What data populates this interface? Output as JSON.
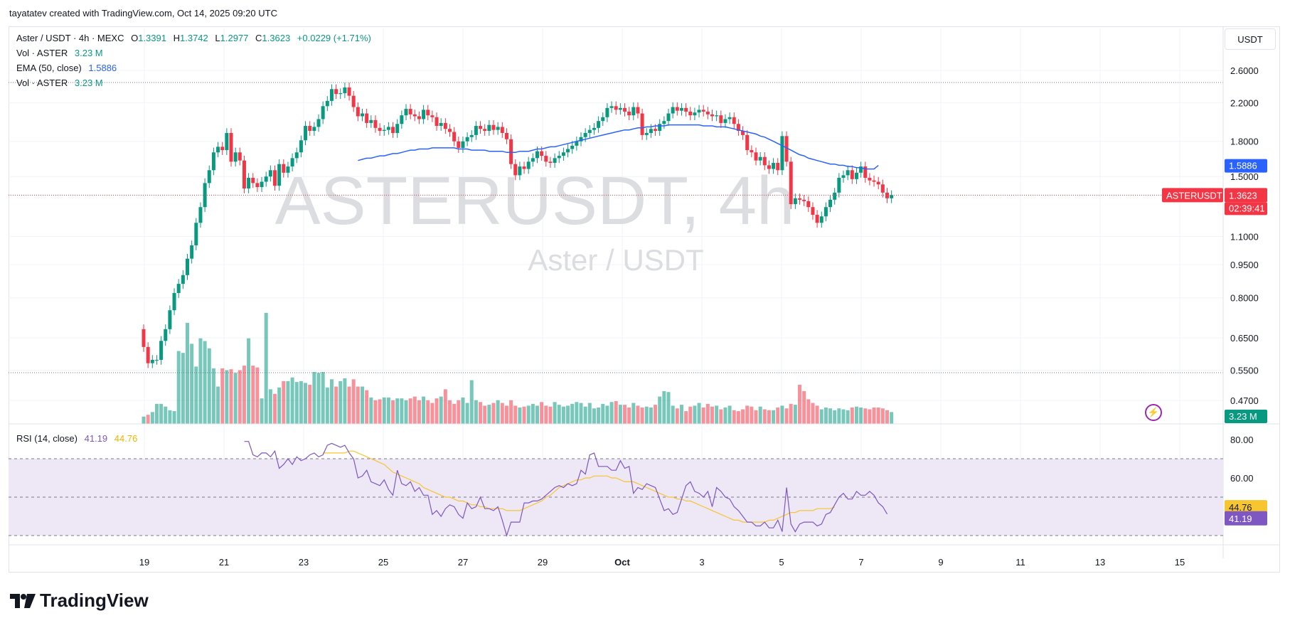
{
  "credit": "tayatatev created with TradingView.com, Oct 14, 2025 09:20 UTC",
  "logo_text": "TradingView",
  "currency": "USDT",
  "legend": {
    "symbol": "Aster / USDT · 4h · MEXC",
    "o_label": "O",
    "o": "1.3391",
    "h_label": "H",
    "h": "1.3742",
    "l_label": "L",
    "l": "1.2977",
    "c_label": "C",
    "c": "1.3623",
    "change": "+0.0229 (+1.71%)",
    "vol1_label": "Vol · ASTER",
    "vol1": "3.23 M",
    "ema_label": "EMA (50, close)",
    "ema": "1.5886",
    "vol2_label": "Vol · ASTER",
    "vol2": "3.23 M",
    "rsi_label": "RSI (14, close)",
    "rsi": "41.19",
    "rsi_ma": "44.76"
  },
  "colors": {
    "up": "#089981",
    "down": "#f23645",
    "ema": "#2962ff",
    "rsi": "#7e57c2",
    "rsi_ma": "#f7c530",
    "rsi_band": "#ede7f6"
  },
  "chart_data": {
    "type": "candlestick",
    "watermark": "ASTERUSDT, 4h",
    "watermark_sub": "Aster / USDT",
    "price_ticks": [
      2.6,
      2.2,
      1.8,
      1.5,
      1.1,
      0.95,
      0.8,
      0.65,
      0.55,
      0.47
    ],
    "price_tick_labels": [
      "2.6000",
      "2.2000",
      "1.8000",
      "1.5000",
      "1.1000",
      "0.9500",
      "0.8000",
      "0.6500",
      "0.5500",
      "0.4700"
    ],
    "x_ticks": [
      "19",
      "21",
      "23",
      "25",
      "27",
      "29",
      "Oct",
      "3",
      "5",
      "7",
      "9",
      "11",
      "13",
      "15"
    ],
    "price_scale": "log",
    "last_price": "1.3623",
    "last_price_symbol": "ASTERUSDT",
    "countdown": "02:39:41",
    "ema_value": "1.5886",
    "volume_value": "3.23 M",
    "rsi_ticks": [
      "80.00",
      "60.00"
    ],
    "rsi_value": "41.19",
    "rsi_ma_value": "44.76",
    "closes": [
      0.62,
      0.57,
      0.58,
      0.58,
      0.64,
      0.68,
      0.75,
      0.82,
      0.86,
      0.9,
      0.98,
      1.05,
      1.18,
      1.28,
      1.45,
      1.55,
      1.7,
      1.75,
      1.72,
      1.88,
      1.62,
      1.7,
      1.63,
      1.41,
      1.49,
      1.45,
      1.42,
      1.46,
      1.5,
      1.55,
      1.43,
      1.6,
      1.53,
      1.58,
      1.65,
      1.7,
      1.81,
      1.95,
      1.9,
      1.94,
      2.02,
      2.16,
      2.22,
      2.36,
      2.3,
      2.31,
      2.38,
      2.28,
      2.15,
      2.05,
      2.08,
      1.98,
      2.01,
      1.93,
      1.9,
      1.91,
      1.94,
      1.88,
      1.97,
      2.06,
      2.13,
      2.07,
      2.05,
      2.02,
      2.12,
      2.06,
      2.04,
      1.95,
      1.98,
      1.92,
      1.89,
      1.8,
      1.74,
      1.8,
      1.84,
      1.86,
      1.95,
      1.92,
      1.9,
      1.96,
      1.91,
      1.94,
      1.88,
      1.82,
      1.6,
      1.51,
      1.58,
      1.56,
      1.62,
      1.65,
      1.71,
      1.67,
      1.62,
      1.61,
      1.65,
      1.67,
      1.7,
      1.73,
      1.76,
      1.8,
      1.84,
      1.88,
      1.91,
      1.93,
      2.0,
      2.04,
      2.14,
      2.16,
      2.12,
      2.14,
      2.1,
      2.06,
      2.15,
      2.08,
      1.86,
      1.88,
      1.92,
      1.9,
      1.97,
      2.0,
      2.08,
      2.15,
      2.11,
      2.14,
      2.1,
      2.06,
      2.09,
      2.12,
      2.1,
      2.07,
      2.05,
      2.06,
      1.98,
      2.02,
      2.04,
      1.97,
      1.9,
      1.86,
      1.72,
      1.7,
      1.63,
      1.66,
      1.59,
      1.56,
      1.61,
      1.55,
      1.85,
      1.62,
      1.3,
      1.34,
      1.33,
      1.32,
      1.28,
      1.23,
      1.18,
      1.22,
      1.28,
      1.33,
      1.38,
      1.49,
      1.51,
      1.55,
      1.48,
      1.53,
      1.58,
      1.49,
      1.47,
      1.46,
      1.44,
      1.38,
      1.34,
      1.3623
    ],
    "volumes": [
      0.8,
      1.0,
      1.3,
      2.2,
      2.2,
      1.9,
      1.5,
      1.4,
      8.0,
      7.8,
      11.1,
      8.8,
      6.3,
      9.4,
      9.1,
      8.3,
      6.1,
      4.1,
      6.1,
      5.9,
      6.0,
      5.6,
      5.9,
      6.4,
      9.4,
      6.4,
      6.2,
      2.8,
      12.2,
      3.8,
      3.3,
      4.0,
      4.7,
      4.7,
      5.1,
      4.6,
      4.7,
      4.5,
      4.3,
      5.7,
      5.6,
      5.7,
      4.0,
      4.9,
      4.1,
      4.7,
      5.0,
      4.1,
      4.9,
      4.1,
      4.1,
      3.7,
      2.9,
      2.6,
      2.7,
      2.9,
      2.9,
      2.6,
      2.8,
      2.8,
      2.6,
      2.8,
      3.0,
      2.6,
      3.0,
      2.6,
      2.3,
      2.8,
      3.0,
      3.8,
      2.6,
      2.2,
      2.6,
      2.9,
      2.3,
      4.8,
      2.6,
      2.4,
      2.0,
      2.1,
      2.3,
      2.6,
      2.3,
      2.0,
      2.6,
      2.0,
      1.8,
      1.9,
      2.0,
      2.2,
      2.0,
      2.4,
      2.0,
      1.9,
      2.4,
      2.1,
      1.9,
      2.0,
      2.2,
      2.4,
      2.3,
      1.9,
      2.3,
      1.7,
      1.8,
      2.2,
      2.0,
      2.4,
      2.5,
      2.1,
      2.1,
      1.8,
      2.3,
      2.0,
      1.8,
      1.9,
      1.8,
      2.1,
      3.0,
      3.6,
      3.5,
      2.0,
      1.7,
      2.1,
      1.4,
      1.9,
      2.0,
      2.3,
      1.8,
      2.2,
      1.9,
      2.0,
      1.6,
      1.8,
      2.0,
      1.5,
      1.4,
      1.6,
      2.0,
      1.9,
      1.5,
      1.9,
      1.6,
      1.5,
      1.5,
      1.8,
      2.0,
      1.7,
      2.2,
      2.1,
      4.3,
      3.6,
      2.7,
      2.3,
      2.0,
      1.6,
      1.8,
      1.7,
      1.5,
      1.7,
      1.6,
      1.5,
      1.8,
      1.9,
      1.8,
      1.7,
      1.6,
      1.8,
      1.8,
      1.7,
      1.5,
      1.3,
      1.1,
      0.7
    ],
    "ema": [
      null,
      null,
      null,
      null,
      null,
      null,
      null,
      null,
      null,
      null,
      null,
      null,
      null,
      null,
      null,
      null,
      null,
      null,
      null,
      null,
      null,
      null,
      null,
      null,
      null,
      null,
      null,
      null,
      null,
      null,
      null,
      null,
      null,
      null,
      null,
      null,
      null,
      null,
      null,
      null,
      null,
      null,
      null,
      null,
      null,
      null,
      null,
      null,
      null,
      1.63,
      1.64,
      1.65,
      1.65,
      1.66,
      1.67,
      1.67,
      1.68,
      1.69,
      1.69,
      1.7,
      1.71,
      1.72,
      1.72,
      1.73,
      1.73,
      1.73,
      1.74,
      1.74,
      1.74,
      1.74,
      1.74,
      1.74,
      1.73,
      1.73,
      1.73,
      1.72,
      1.72,
      1.72,
      1.72,
      1.71,
      1.71,
      1.71,
      1.71,
      1.7,
      1.7,
      1.7,
      1.71,
      1.71,
      1.71,
      1.72,
      1.73,
      1.73,
      1.74,
      1.75,
      1.75,
      1.76,
      1.77,
      1.78,
      1.79,
      1.8,
      1.81,
      1.82,
      1.83,
      1.84,
      1.85,
      1.86,
      1.87,
      1.88,
      1.89,
      1.9,
      1.91,
      1.91,
      1.92,
      1.93,
      1.93,
      1.94,
      1.94,
      1.95,
      1.95,
      1.95,
      1.96,
      1.96,
      1.96,
      1.96,
      1.96,
      1.96,
      1.96,
      1.96,
      1.95,
      1.95,
      1.95,
      1.94,
      1.94,
      1.94,
      1.93,
      1.92,
      1.91,
      1.9,
      1.89,
      1.88,
      1.87,
      1.85,
      1.84,
      1.82,
      1.8,
      1.78,
      1.76,
      1.74,
      1.72,
      1.7,
      1.68,
      1.67,
      1.65,
      1.64,
      1.63,
      1.62,
      1.61,
      1.6,
      1.6,
      1.59,
      1.59,
      1.58,
      1.58,
      1.57,
      1.57,
      1.56,
      1.56,
      1.56,
      1.5886
    ],
    "rsi": [
      null,
      null,
      null,
      null,
      null,
      null,
      null,
      null,
      null,
      null,
      null,
      null,
      null,
      null,
      null,
      null,
      null,
      null,
      null,
      null,
      null,
      null,
      null,
      79,
      79,
      72,
      71,
      73,
      73,
      71,
      74,
      65,
      67,
      70,
      67,
      71,
      69,
      70,
      72,
      73,
      71,
      72,
      77,
      78,
      77,
      76,
      77,
      73,
      70,
      60,
      61,
      64,
      58,
      57,
      56,
      59,
      54,
      51,
      64,
      57,
      56,
      58,
      53,
      55,
      51,
      51,
      41,
      43,
      40,
      44,
      46,
      45,
      41,
      39,
      47,
      44,
      45,
      50,
      44,
      44,
      43,
      45,
      38,
      30,
      37,
      37,
      37,
      47,
      47,
      48,
      48,
      49,
      51,
      53,
      55,
      56,
      55,
      57,
      56,
      57,
      64,
      62,
      72,
      73,
      66,
      66,
      66,
      64,
      64,
      69,
      65,
      66,
      52,
      55,
      54,
      57,
      56,
      55,
      49,
      43,
      44,
      41,
      42,
      49,
      56,
      58,
      53,
      52,
      50,
      53,
      45,
      55,
      53,
      50,
      49,
      45,
      43,
      40,
      37,
      37,
      35,
      35,
      37,
      34,
      34,
      38,
      32,
      55,
      36,
      32,
      36,
      37,
      37,
      37,
      35,
      36,
      41,
      42,
      46,
      50,
      52,
      49,
      49,
      53,
      51,
      51,
      53,
      51,
      47,
      45,
      41.19
    ],
    "rsi_ma": [
      null,
      null,
      null,
      null,
      null,
      null,
      null,
      null,
      null,
      null,
      null,
      null,
      null,
      null,
      null,
      null,
      null,
      null,
      null,
      null,
      null,
      null,
      null,
      null,
      null,
      null,
      null,
      null,
      null,
      null,
      null,
      null,
      null,
      null,
      null,
      null,
      null,
      null,
      null,
      null,
      null,
      73,
      73,
      73,
      73,
      73,
      73,
      74,
      74,
      73,
      72,
      71,
      70,
      69,
      68,
      67,
      65,
      63,
      62,
      61,
      60,
      59,
      58,
      57,
      55,
      54,
      53,
      52,
      51,
      50,
      50,
      49,
      48,
      48,
      47,
      46,
      46,
      45,
      45,
      44,
      44,
      44,
      44,
      43,
      43,
      43,
      43,
      44,
      45,
      46,
      47,
      48,
      50,
      51,
      53,
      55,
      56,
      57,
      58,
      59,
      59,
      60,
      60,
      61,
      61,
      61,
      61,
      60,
      60,
      59,
      58,
      58,
      58,
      57,
      56,
      55,
      54,
      53,
      52,
      51,
      50,
      50,
      49,
      49,
      48,
      48,
      47,
      46,
      45,
      44,
      43,
      42,
      41,
      40,
      39,
      38,
      38,
      37,
      37,
      37,
      37,
      37,
      37,
      38,
      38,
      39,
      40,
      41,
      42,
      42,
      43,
      43,
      43,
      43,
      44,
      44,
      44,
      44,
      44.76
    ]
  }
}
